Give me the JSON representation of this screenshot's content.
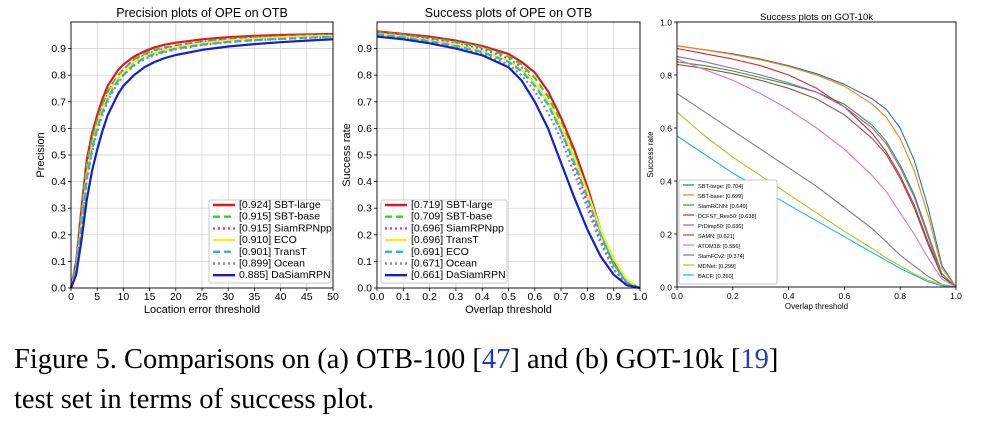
{
  "caption": {
    "text_a": "Figure 5. Comparisons on (a) OTB-100 [",
    "ref_a": "47",
    "text_b": "] and (b) GOT-10k [",
    "ref_b": "19",
    "text_c": "]",
    "line2": "test set in terms of success plot."
  },
  "chart_data": [
    {
      "type": "line",
      "title": "Precision plots of OPE on OTB",
      "xlabel": "Location error threshold",
      "ylabel": "Precision",
      "xlim": [
        0,
        50
      ],
      "ylim": [
        0,
        1.0
      ],
      "xticks": [
        "0",
        "5",
        "10",
        "15",
        "20",
        "25",
        "30",
        "35",
        "40",
        "45",
        "50"
      ],
      "yticks": [
        "0.0",
        "0.1",
        "0.2",
        "0.3",
        "0.4",
        "0.5",
        "0.6",
        "0.7",
        "0.8",
        "0.9"
      ],
      "grid": true,
      "legend_position": "bottom-right",
      "x": [
        0,
        1,
        2,
        3,
        4,
        5,
        6,
        7,
        8,
        9,
        10,
        12,
        14,
        16,
        18,
        20,
        25,
        30,
        35,
        40,
        45,
        50
      ],
      "series": [
        {
          "name": "[0.924] SBT-large",
          "color": "#e8141c",
          "dash": "solid",
          "values": [
            0,
            0.1,
            0.3,
            0.48,
            0.58,
            0.65,
            0.71,
            0.76,
            0.79,
            0.82,
            0.84,
            0.87,
            0.89,
            0.905,
            0.915,
            0.922,
            0.935,
            0.943,
            0.948,
            0.951,
            0.953,
            0.955
          ]
        },
        {
          "name": "[0.915] SBT-base",
          "color": "#32d232",
          "dash": "dash",
          "values": [
            0,
            0.09,
            0.28,
            0.46,
            0.56,
            0.63,
            0.69,
            0.74,
            0.77,
            0.8,
            0.82,
            0.86,
            0.88,
            0.895,
            0.905,
            0.912,
            0.927,
            0.936,
            0.942,
            0.946,
            0.95,
            0.952
          ]
        },
        {
          "name": "[0.915] SiamRPNpp",
          "color": "#e02ad8",
          "dash": "dot",
          "values": [
            0,
            0.08,
            0.26,
            0.44,
            0.54,
            0.62,
            0.68,
            0.73,
            0.77,
            0.79,
            0.82,
            0.855,
            0.875,
            0.89,
            0.9,
            0.91,
            0.925,
            0.935,
            0.941,
            0.945,
            0.949,
            0.951
          ]
        },
        {
          "name": "[0.910] ECO",
          "color": "#f2f21a",
          "dash": "solid",
          "values": [
            0,
            0.07,
            0.24,
            0.42,
            0.53,
            0.61,
            0.67,
            0.72,
            0.76,
            0.79,
            0.81,
            0.85,
            0.87,
            0.885,
            0.895,
            0.905,
            0.92,
            0.93,
            0.937,
            0.942,
            0.946,
            0.948
          ]
        },
        {
          "name": "[0.901] TransT",
          "color": "#25b8e0",
          "dash": "dash",
          "values": [
            0,
            0.07,
            0.23,
            0.41,
            0.52,
            0.6,
            0.66,
            0.71,
            0.75,
            0.78,
            0.8,
            0.84,
            0.865,
            0.88,
            0.89,
            0.9,
            0.915,
            0.925,
            0.932,
            0.937,
            0.941,
            0.944
          ]
        },
        {
          "name": "[0.899] Ocean",
          "color": "#8c8c8c",
          "dash": "dot",
          "values": [
            0,
            0.065,
            0.22,
            0.4,
            0.51,
            0.59,
            0.65,
            0.7,
            0.74,
            0.77,
            0.8,
            0.835,
            0.86,
            0.875,
            0.887,
            0.897,
            0.913,
            0.924,
            0.931,
            0.936,
            0.94,
            0.943
          ]
        },
        {
          "name": "0.885] DaSiamRPN",
          "color": "#1020d8",
          "dash": "solid",
          "values": [
            0,
            0.05,
            0.18,
            0.33,
            0.44,
            0.52,
            0.59,
            0.65,
            0.69,
            0.73,
            0.76,
            0.8,
            0.83,
            0.85,
            0.865,
            0.876,
            0.895,
            0.908,
            0.917,
            0.924,
            0.93,
            0.935
          ]
        }
      ]
    },
    {
      "type": "line",
      "title": "Success plots of OPE on OTB",
      "xlabel": "Overlap threshold",
      "ylabel": "Success rate",
      "xlim": [
        0,
        1.0
      ],
      "ylim": [
        0,
        1.0
      ],
      "xticks": [
        "0.0",
        "0.1",
        "0.2",
        "0.3",
        "0.4",
        "0.5",
        "0.6",
        "0.7",
        "0.8",
        "0.9",
        "1.0"
      ],
      "yticks": [
        "0.0",
        "0.1",
        "0.2",
        "0.3",
        "0.4",
        "0.5",
        "0.6",
        "0.7",
        "0.8",
        "0.9"
      ],
      "grid": true,
      "legend_position": "bottom-left",
      "x": [
        0,
        0.1,
        0.2,
        0.3,
        0.4,
        0.5,
        0.55,
        0.6,
        0.65,
        0.7,
        0.75,
        0.8,
        0.85,
        0.9,
        0.95,
        1.0
      ],
      "series": [
        {
          "name": "[0.719] SBT-large",
          "color": "#e8141c",
          "dash": "solid",
          "values": [
            0.965,
            0.955,
            0.945,
            0.93,
            0.91,
            0.88,
            0.85,
            0.81,
            0.74,
            0.64,
            0.52,
            0.38,
            0.22,
            0.1,
            0.02,
            0
          ]
        },
        {
          "name": "[0.709] SBT-base",
          "color": "#32d232",
          "dash": "dash",
          "values": [
            0.962,
            0.952,
            0.94,
            0.925,
            0.905,
            0.87,
            0.84,
            0.79,
            0.72,
            0.62,
            0.5,
            0.36,
            0.21,
            0.09,
            0.02,
            0
          ]
        },
        {
          "name": "[0.696] SiamRPNpp",
          "color": "#e02ad8",
          "dash": "dot",
          "values": [
            0.96,
            0.95,
            0.937,
            0.92,
            0.898,
            0.862,
            0.83,
            0.77,
            0.7,
            0.59,
            0.46,
            0.32,
            0.18,
            0.07,
            0.015,
            0
          ]
        },
        {
          "name": "[0.696] TransT",
          "color": "#f2f21a",
          "dash": "solid",
          "values": [
            0.955,
            0.945,
            0.93,
            0.915,
            0.89,
            0.855,
            0.82,
            0.77,
            0.7,
            0.61,
            0.49,
            0.36,
            0.22,
            0.11,
            0.03,
            0
          ]
        },
        {
          "name": "[0.691] ECO",
          "color": "#25b8e0",
          "dash": "dash",
          "values": [
            0.953,
            0.942,
            0.928,
            0.91,
            0.887,
            0.85,
            0.815,
            0.76,
            0.69,
            0.59,
            0.47,
            0.34,
            0.2,
            0.09,
            0.02,
            0
          ]
        },
        {
          "name": "[0.671] Ocean",
          "color": "#8c8c8c",
          "dash": "dot",
          "values": [
            0.95,
            0.94,
            0.925,
            0.905,
            0.88,
            0.84,
            0.8,
            0.74,
            0.66,
            0.56,
            0.43,
            0.3,
            0.17,
            0.07,
            0.015,
            0
          ]
        },
        {
          "name": "[0.661] DaSiamRPN",
          "color": "#1020d8",
          "dash": "solid",
          "values": [
            0.945,
            0.935,
            0.92,
            0.9,
            0.875,
            0.83,
            0.78,
            0.7,
            0.6,
            0.47,
            0.34,
            0.22,
            0.12,
            0.05,
            0.01,
            0
          ]
        }
      ]
    },
    {
      "type": "line",
      "title": "Success plots on GOT-10k",
      "xlabel": "Overlap threshold",
      "ylabel": "Success rate",
      "xlim": [
        0,
        1.0
      ],
      "ylim": [
        0,
        1.0
      ],
      "xticks": [
        "0.0",
        "0.2",
        "0.4",
        "0.6",
        "0.8",
        "1.0"
      ],
      "yticks": [
        "0.0",
        "0.2",
        "0.4",
        "0.6",
        "0.8",
        "1.0"
      ],
      "grid": false,
      "legend_position": "bottom-left",
      "x": [
        0,
        0.1,
        0.2,
        0.3,
        0.4,
        0.5,
        0.6,
        0.7,
        0.75,
        0.8,
        0.85,
        0.9,
        0.95,
        1.0
      ],
      "series": [
        {
          "name": "SBT-large: [0.704]",
          "color": "#1f77b4",
          "values": [
            0.91,
            0.895,
            0.88,
            0.86,
            0.835,
            0.805,
            0.765,
            0.71,
            0.67,
            0.6,
            0.48,
            0.3,
            0.08,
            0
          ]
        },
        {
          "name": "SBT-base: [0.699]",
          "color": "#ff7f0e",
          "values": [
            0.91,
            0.895,
            0.877,
            0.857,
            0.832,
            0.8,
            0.758,
            0.69,
            0.64,
            0.56,
            0.44,
            0.27,
            0.07,
            0
          ]
        },
        {
          "name": "SiamRCNN: [0.649]",
          "color": "#2ca02c",
          "values": [
            0.85,
            0.835,
            0.815,
            0.79,
            0.765,
            0.735,
            0.69,
            0.61,
            0.55,
            0.46,
            0.35,
            0.2,
            0.05,
            0
          ]
        },
        {
          "name": "DCFST_Res50: [0.638]",
          "color": "#d62728",
          "values": [
            0.9,
            0.88,
            0.86,
            0.835,
            0.8,
            0.75,
            0.68,
            0.58,
            0.51,
            0.42,
            0.31,
            0.17,
            0.04,
            0
          ]
        },
        {
          "name": "PrDimp50: [0.636]",
          "color": "#9467bd",
          "values": [
            0.87,
            0.85,
            0.825,
            0.8,
            0.77,
            0.735,
            0.68,
            0.6,
            0.54,
            0.45,
            0.34,
            0.19,
            0.04,
            0
          ]
        },
        {
          "name": "SAMN: [0.621]",
          "color": "#8c564b",
          "values": [
            0.84,
            0.825,
            0.805,
            0.78,
            0.75,
            0.71,
            0.65,
            0.56,
            0.5,
            0.41,
            0.3,
            0.16,
            0.04,
            0
          ]
        },
        {
          "name": "ATOM18: [0.556]",
          "color": "#e377c2",
          "values": [
            0.86,
            0.82,
            0.78,
            0.73,
            0.67,
            0.6,
            0.52,
            0.42,
            0.36,
            0.28,
            0.2,
            0.11,
            0.03,
            0
          ]
        },
        {
          "name": "SiamFCv2: [0.374]",
          "color": "#7f7f7f",
          "values": [
            0.73,
            0.66,
            0.59,
            0.52,
            0.45,
            0.38,
            0.3,
            0.22,
            0.17,
            0.12,
            0.08,
            0.04,
            0.01,
            0
          ]
        },
        {
          "name": "MDNet: [0.299]",
          "color": "#bcbd22",
          "values": [
            0.66,
            0.57,
            0.49,
            0.42,
            0.35,
            0.28,
            0.21,
            0.145,
            0.11,
            0.08,
            0.05,
            0.025,
            0.01,
            0
          ]
        },
        {
          "name": "BACF: [0.260]",
          "color": "#17becf",
          "values": [
            0.57,
            0.5,
            0.43,
            0.37,
            0.31,
            0.25,
            0.19,
            0.13,
            0.1,
            0.07,
            0.045,
            0.02,
            0.005,
            0
          ]
        }
      ]
    }
  ]
}
